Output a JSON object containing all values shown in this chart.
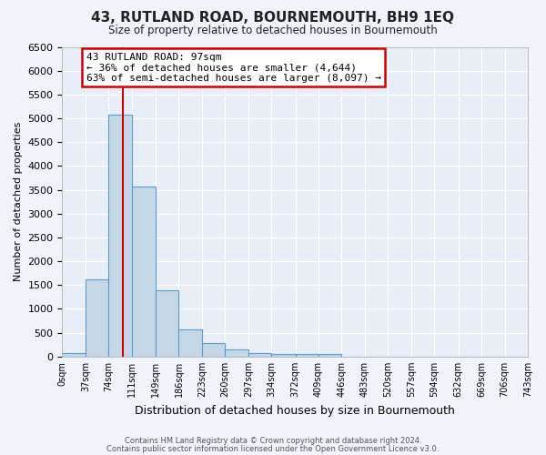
{
  "title": "43, RUTLAND ROAD, BOURNEMOUTH, BH9 1EQ",
  "subtitle": "Size of property relative to detached houses in Bournemouth",
  "xlabel": "Distribution of detached houses by size in Bournemouth",
  "ylabel": "Number of detached properties",
  "bar_color": "#c5d8e8",
  "bar_edge_color": "#5a9cc5",
  "background_color": "#e8eef8",
  "fig_background_color": "#f0f4fa",
  "grid_color": "#ffffff",
  "bin_edges": [
    0,
    37,
    74,
    111,
    149,
    186,
    223,
    260,
    297,
    334,
    372,
    409,
    446,
    483,
    520,
    557,
    594,
    632,
    669,
    706,
    743
  ],
  "bar_heights": [
    75,
    1625,
    5075,
    3575,
    1400,
    575,
    290,
    140,
    75,
    60,
    60,
    60,
    0,
    0,
    0,
    0,
    0,
    0,
    0,
    0
  ],
  "property_size": 97,
  "red_line_color": "#cc0000",
  "annotation_line1": "43 RUTLAND ROAD: 97sqm",
  "annotation_line2": "← 36% of detached houses are smaller (4,644)",
  "annotation_line3": "63% of semi-detached houses are larger (8,097) →",
  "annotation_box_color": "#cc0000",
  "ylim": [
    0,
    6500
  ],
  "ytick_step": 500,
  "footer_line1": "Contains HM Land Registry data © Crown copyright and database right 2024.",
  "footer_line2": "Contains public sector information licensed under the Open Government Licence v3.0."
}
